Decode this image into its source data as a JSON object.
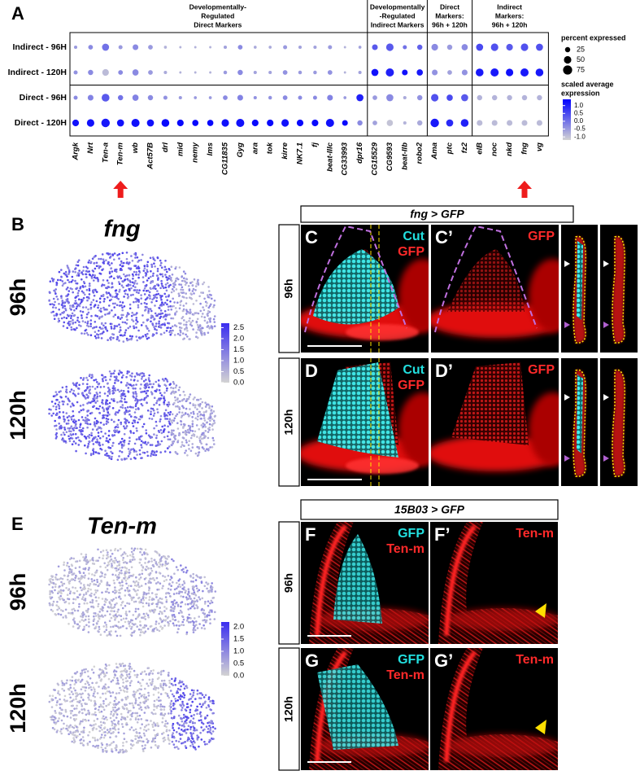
{
  "chart_data": {
    "type": "dot",
    "panel_label": "A",
    "groups": [
      {
        "label_lines": [
          "Developmentally-",
          "Regulated",
          "Direct Markers"
        ],
        "categories": [
          "Argk",
          "Nrt",
          "Ten-a",
          "Ten-m",
          "wb",
          "Act57B",
          "drl",
          "mid",
          "nemy",
          "lms",
          "CG11835",
          "Gyg",
          "ara",
          "tok",
          "kirre",
          "NK7.1",
          "fj",
          "beat-IIIc",
          "CG33993",
          "dpr16"
        ]
      },
      {
        "label_lines": [
          "Developmentally",
          "-Regulated",
          "Indirect Markers"
        ],
        "categories": [
          "CG15529",
          "CG9593",
          "beat-IIb",
          "robo2"
        ]
      },
      {
        "label_lines": [
          "Direct",
          "Markers:",
          "96h + 120h"
        ],
        "categories": [
          "Ama",
          "ptc",
          "fz2"
        ]
      },
      {
        "label_lines": [
          "Indirect",
          "Markers:",
          "96h + 120h"
        ],
        "categories": [
          "elB",
          "noc",
          "nkd",
          "fng",
          "vg"
        ]
      }
    ],
    "series": [
      {
        "name": "Indirect - 96H",
        "size": [
          10,
          20,
          45,
          15,
          30,
          20,
          8,
          5,
          5,
          5,
          10,
          20,
          8,
          8,
          15,
          10,
          10,
          15,
          5,
          8,
          30,
          50,
          15,
          25,
          40,
          25,
          35,
          45,
          50,
          40,
          50,
          45
        ],
        "values": [
          -0.5,
          -0.3,
          0.0,
          -0.5,
          -0.3,
          -0.5,
          -0.8,
          -0.8,
          -0.8,
          -0.8,
          -0.6,
          -0.3,
          -0.7,
          -0.7,
          -0.5,
          -0.6,
          -0.6,
          -0.5,
          -0.8,
          -0.6,
          0.3,
          0.3,
          0.0,
          0.2,
          -0.3,
          -0.5,
          -0.3,
          0.5,
          0.4,
          0.3,
          0.4,
          0.4
        ]
      },
      {
        "name": "Indirect - 120H",
        "size": [
          15,
          25,
          40,
          20,
          35,
          20,
          10,
          5,
          5,
          5,
          12,
          25,
          10,
          10,
          20,
          12,
          12,
          20,
          5,
          10,
          45,
          60,
          30,
          35,
          30,
          20,
          30,
          55,
          60,
          50,
          60,
          55
        ],
        "values": [
          -0.4,
          -0.3,
          -0.9,
          -0.3,
          -0.3,
          -0.5,
          -0.7,
          -0.8,
          -0.8,
          -0.8,
          -0.5,
          -0.3,
          -0.6,
          -0.6,
          -0.4,
          -0.5,
          -0.5,
          -0.4,
          -0.8,
          -0.6,
          1.2,
          1.0,
          1.2,
          1.1,
          -0.4,
          -0.6,
          -0.4,
          1.1,
          1.1,
          1.2,
          1.1,
          1.1
        ]
      },
      {
        "name": "Direct - 96H",
        "size": [
          15,
          30,
          55,
          25,
          35,
          25,
          15,
          10,
          8,
          8,
          20,
          30,
          10,
          12,
          20,
          15,
          15,
          30,
          8,
          45,
          20,
          45,
          10,
          25,
          50,
          35,
          45,
          25,
          25,
          25,
          25,
          25
        ],
        "values": [
          -0.3,
          -0.2,
          0.3,
          0.0,
          -0.2,
          -0.3,
          -0.4,
          -0.5,
          -0.5,
          -0.5,
          -0.3,
          -0.2,
          -0.4,
          -0.4,
          -0.3,
          -0.3,
          -0.3,
          -0.2,
          -0.5,
          1.0,
          -0.5,
          -0.3,
          -0.7,
          -0.4,
          0.4,
          0.5,
          0.3,
          -0.8,
          -0.8,
          -0.8,
          -0.8,
          -0.8
        ]
      },
      {
        "name": "Direct - 120H",
        "size": [
          40,
          50,
          65,
          45,
          60,
          45,
          55,
          40,
          35,
          35,
          50,
          60,
          40,
          40,
          50,
          40,
          40,
          60,
          30,
          25,
          20,
          35,
          10,
          25,
          65,
          45,
          55,
          30,
          30,
          30,
          30,
          30
        ],
        "values": [
          1.2,
          1.2,
          1.1,
          1.2,
          1.2,
          1.2,
          1.3,
          1.3,
          1.3,
          1.3,
          1.2,
          1.2,
          1.3,
          1.3,
          1.2,
          1.3,
          1.3,
          1.2,
          1.3,
          -0.3,
          -0.6,
          -1.0,
          -0.8,
          -0.7,
          1.1,
          0.9,
          1.0,
          -0.9,
          -0.9,
          -0.9,
          -0.9,
          -0.9
        ]
      }
    ],
    "size_legend": {
      "title": "percent expressed",
      "values": [
        25,
        50,
        75
      ]
    },
    "color_legend": {
      "title_lines": [
        "scaled average",
        "expression"
      ],
      "ticks": [
        {
          "value": 1,
          "label": "1.0"
        },
        0.5,
        {
          "value": 0,
          "label": "0.0"
        },
        -0.5,
        {
          "value": -1,
          "label": "-1.0"
        }
      ],
      "clim": [
        -1.2,
        1.4
      ],
      "low_color": "#d3d3d3",
      "high_color": "#0000ff"
    }
  },
  "feature_plots": [
    {
      "panel_label": "B",
      "gene": "fng",
      "rows": [
        "96h",
        "120h"
      ],
      "low_color": "#d3d3d3",
      "high_color": "#3a2df0",
      "colorbar": {
        "ticks": [
          2.5,
          {
            "value": 2,
            "label": "2.0"
          },
          1.5,
          {
            "value": 1,
            "label": "1.0"
          },
          0.5,
          {
            "value": 0,
            "label": "0.0"
          }
        ],
        "clim": [
          0,
          2.7
        ]
      }
    },
    {
      "panel_label": "E",
      "gene": "Ten-m",
      "rows": [
        "96h",
        "120h"
      ],
      "low_color": "#d3d3d3",
      "high_color": "#3a2df0",
      "colorbar": {
        "ticks": [
          {
            "value": 2,
            "label": "2.0"
          },
          1.5,
          {
            "value": 1,
            "label": "1.0"
          },
          0.5,
          {
            "value": 0,
            "label": "0.0"
          }
        ],
        "clim": [
          0,
          2.2
        ]
      }
    }
  ],
  "image_figures": [
    {
      "header": "fng > GFP",
      "rows": [
        {
          "label": "96h",
          "panels": [
            {
              "letter": "C",
              "channels": [
                {
                  "text": "Cut",
                  "color": "#22e0e0"
                },
                {
                  "text": "GFP",
                  "color": "#ff2a2a"
                }
              ]
            },
            {
              "letter": "C’",
              "channels": [
                {
                  "text": "GFP",
                  "color": "#ff2a2a"
                }
              ]
            }
          ]
        },
        {
          "label": "120h",
          "panels": [
            {
              "letter": "D",
              "channels": [
                {
                  "text": "Cut",
                  "color": "#22e0e0"
                },
                {
                  "text": "GFP",
                  "color": "#ff2a2a"
                }
              ]
            },
            {
              "letter": "D’",
              "channels": [
                {
                  "text": "GFP",
                  "color": "#ff2a2a"
                }
              ]
            }
          ]
        }
      ]
    },
    {
      "header": "15B03 > GFP",
      "rows": [
        {
          "label": "96h",
          "panels": [
            {
              "letter": "F",
              "channels": [
                {
                  "text": "GFP",
                  "color": "#22e0e0"
                },
                {
                  "text": "Ten-m",
                  "color": "#ff2a2a"
                }
              ]
            },
            {
              "letter": "F’",
              "channels": [
                {
                  "text": "Ten-m",
                  "color": "#ff2a2a"
                }
              ]
            }
          ]
        },
        {
          "label": "120h",
          "panels": [
            {
              "letter": "G",
              "channels": [
                {
                  "text": "GFP",
                  "color": "#22e0e0"
                },
                {
                  "text": "Ten-m",
                  "color": "#ff2a2a"
                }
              ]
            },
            {
              "letter": "G’",
              "channels": [
                {
                  "text": "Ten-m",
                  "color": "#ff2a2a"
                }
              ]
            }
          ]
        }
      ]
    }
  ]
}
